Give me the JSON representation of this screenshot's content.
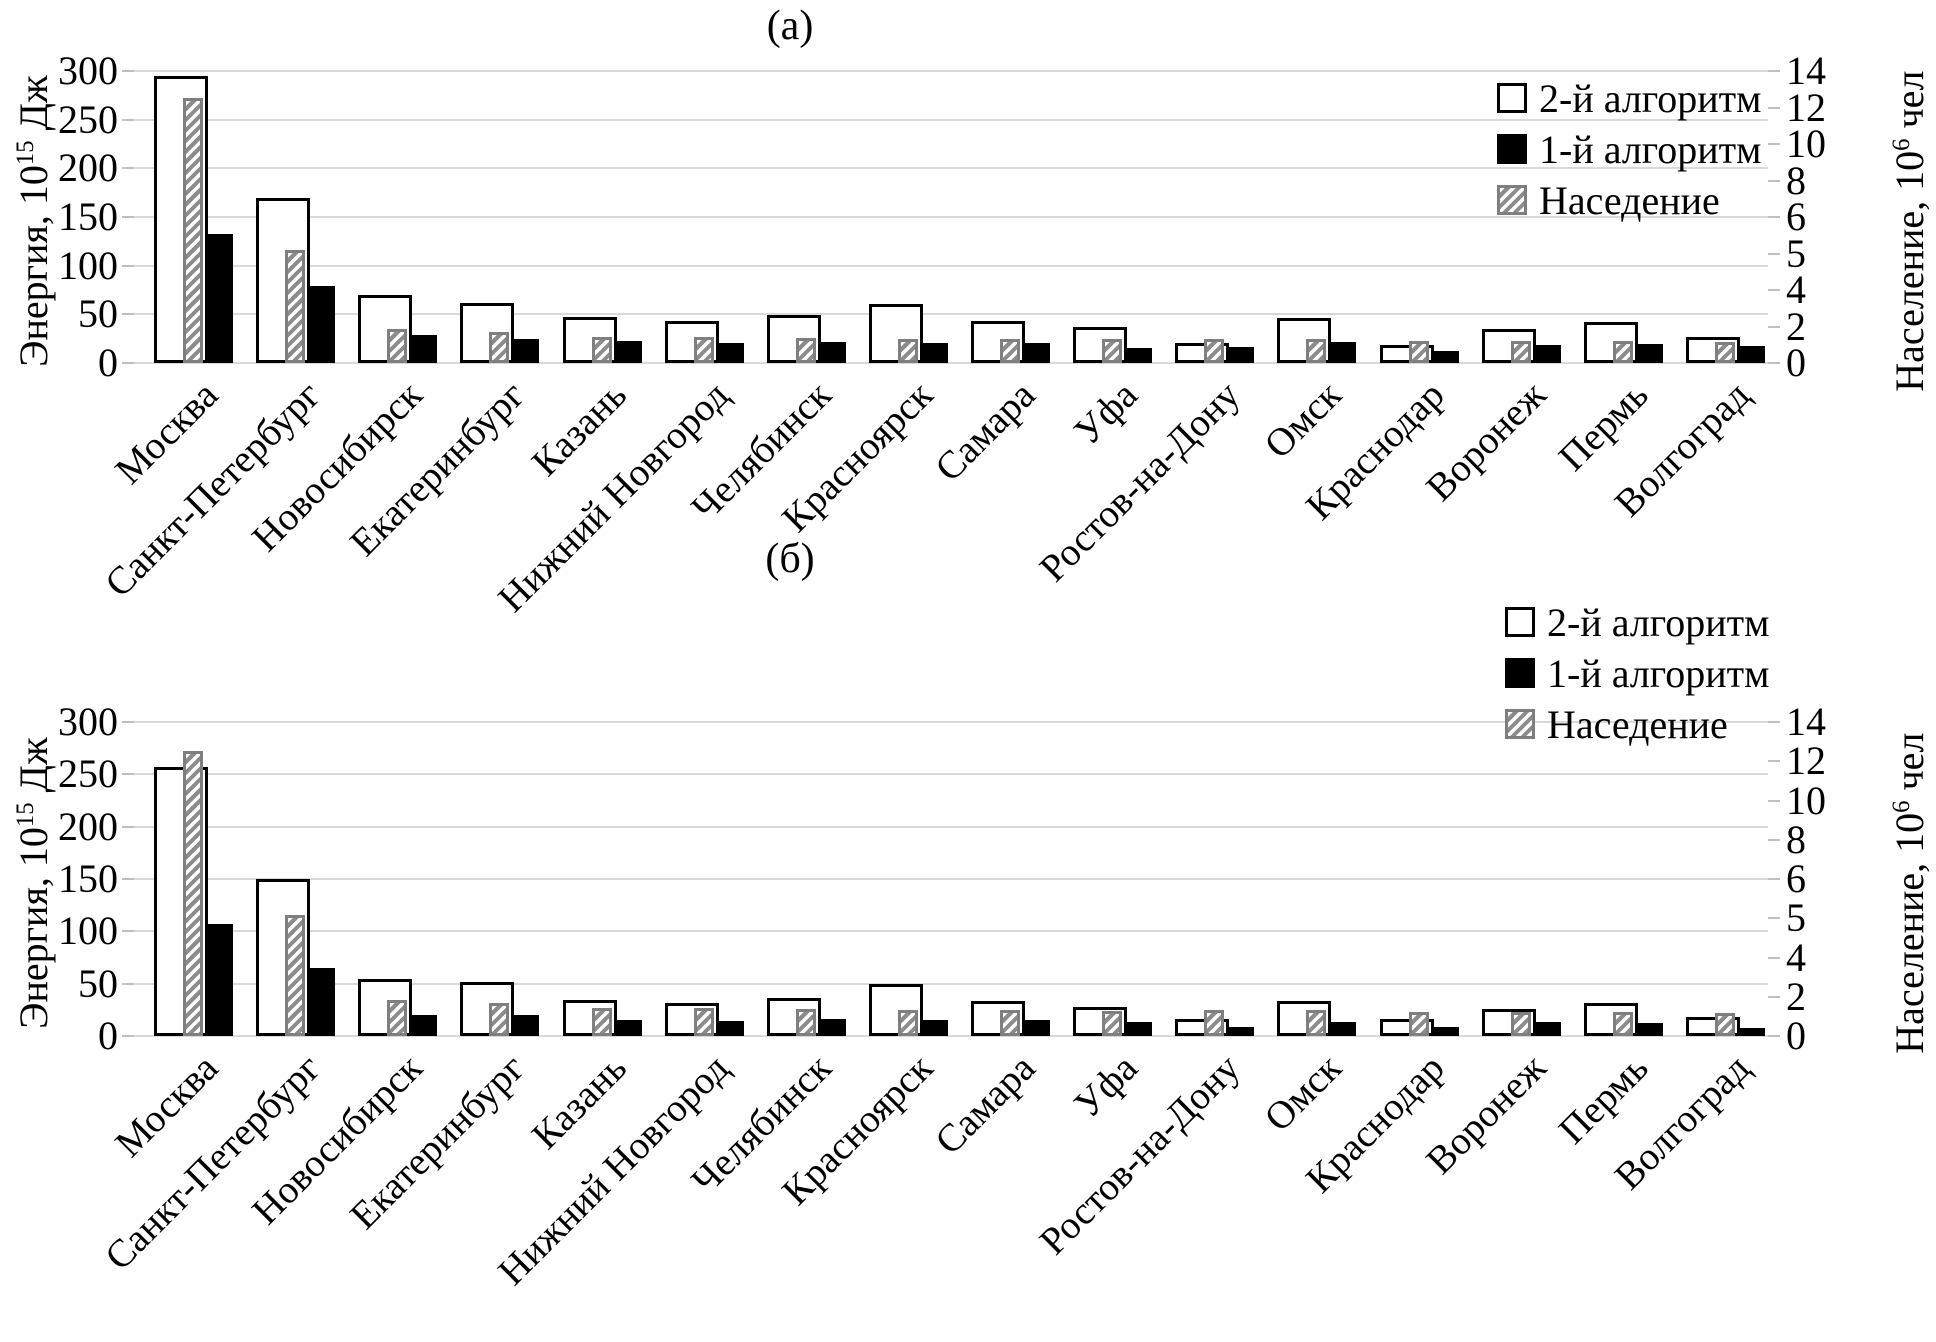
{
  "figure": {
    "background": "#ffffff",
    "grid_color": "#d9d9d9",
    "tick_color": "#bfbfbf",
    "bar_black": "#000000",
    "bar_white_border": "#000000",
    "hatch_border": "#7f7f7f",
    "hatch_stripe": "#8c8c8c"
  },
  "chart_data": [
    {
      "type": "bar",
      "title": "(а)",
      "categories": [
        "Москва",
        "Санкт-Петербург",
        "Новосибирск",
        "Екатеринбург",
        "Казань",
        "Нижний Новгород",
        "Челябинск",
        "Красноярск",
        "Самара",
        "Уфа",
        "Ростов-на-Дону",
        "Омск",
        "Краснодар",
        "Воронеж",
        "Пермь",
        "Волгоград"
      ],
      "series": [
        {
          "name": "2-й алгоритм",
          "style": "white",
          "axis": "left",
          "values": [
            295,
            170,
            70,
            62,
            47,
            43,
            49,
            61,
            43,
            37,
            21,
            46,
            19,
            35,
            42,
            27
          ]
        },
        {
          "name": "1-й алгоритм",
          "style": "black",
          "axis": "left",
          "values": [
            133,
            79,
            29,
            25,
            23,
            21,
            22,
            21,
            21,
            15,
            16,
            22,
            12,
            19,
            20,
            17
          ]
        },
        {
          "name": "Наседение",
          "style": "hatch",
          "axis": "right",
          "values": [
            12.7,
            5.4,
            1.62,
            1.49,
            1.26,
            1.25,
            1.2,
            1.15,
            1.16,
            1.13,
            1.14,
            1.16,
            1.05,
            1.06,
            1.05,
            1.01
          ]
        }
      ],
      "left_axis": {
        "label_pre": "Энергия, 10",
        "label_sup": "15",
        "label_post": " Дж",
        "ticks": [
          "300",
          "250",
          "200",
          "150",
          "100",
          "50",
          "0"
        ],
        "max": 300
      },
      "right_axis": {
        "label_pre": "Население, 10",
        "label_sup": "6",
        "label_post": " чел",
        "ticks": [
          "14",
          "12",
          "10",
          "8",
          "6",
          "5",
          "4",
          "2",
          "0"
        ],
        "max": 14
      },
      "legend": [
        "2-й алгоритм",
        "1-й алгоритм",
        "Наседение"
      ],
      "grid": true,
      "legend_position": "top-right-inside"
    },
    {
      "type": "bar",
      "title": "(б)",
      "categories": [
        "Москва",
        "Санкт-Петербург",
        "Новосибирск",
        "Екатеринбург",
        "Казань",
        "Нижний Новгород",
        "Челябинск",
        "Красноярск",
        "Самара",
        "Уфа",
        "Ростов-на-Дону",
        "Омск",
        "Краснодар",
        "Воронеж",
        "Пермь",
        "Волгоград"
      ],
      "series": [
        {
          "name": "2-й алгоритм",
          "style": "white",
          "axis": "left",
          "values": [
            257,
            150,
            54,
            52,
            34,
            32,
            36,
            50,
            33,
            28,
            16,
            33,
            16,
            26,
            32,
            18
          ]
        },
        {
          "name": "1-й алгоритм",
          "style": "black",
          "axis": "left",
          "values": [
            107,
            65,
            20,
            20,
            15,
            14,
            16,
            15,
            15,
            13,
            9,
            13,
            9,
            13,
            12,
            8
          ]
        },
        {
          "name": "Наседение",
          "style": "hatch",
          "axis": "right",
          "values": [
            12.7,
            5.4,
            1.62,
            1.49,
            1.26,
            1.25,
            1.2,
            1.15,
            1.16,
            1.13,
            1.14,
            1.16,
            1.05,
            1.06,
            1.05,
            1.01
          ]
        }
      ],
      "left_axis": {
        "label_pre": "Энергия, 10",
        "label_sup": "15",
        "label_post": " Дж",
        "ticks": [
          "300",
          "250",
          "200",
          "150",
          "100",
          "50",
          "0"
        ],
        "max": 300
      },
      "right_axis": {
        "label_pre": "Население, 10",
        "label_sup": "6",
        "label_post": " чел",
        "ticks": [
          "14",
          "12",
          "10",
          "8",
          "6",
          "5",
          "4",
          "2",
          "0"
        ],
        "max": 14
      },
      "legend": [
        "2-й алгоритм",
        "1-й алгоритм",
        "Наседение"
      ],
      "grid": true,
      "legend_position": "top-right-inside"
    }
  ]
}
